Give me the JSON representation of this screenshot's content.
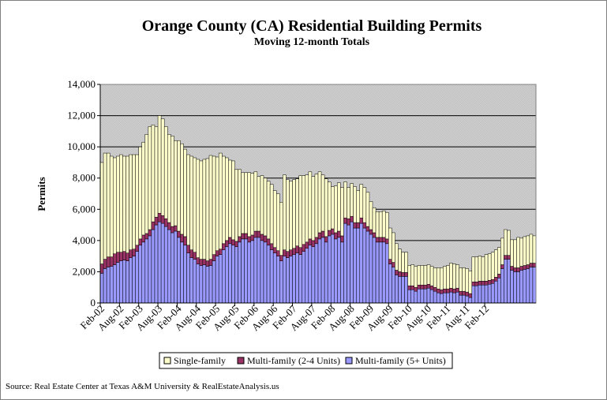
{
  "chart_data": {
    "type": "bar",
    "stacked": true,
    "title": "Orange County (CA) Residential Building Permits",
    "subtitle": "Moving 12-month Totals",
    "ylabel": "Permits",
    "ylim": [
      0,
      14000
    ],
    "yticks": [
      "0",
      "2,000",
      "4,000",
      "6,000",
      "8,000",
      "10,000",
      "12,000",
      "14,000"
    ],
    "xticks": [
      "Feb-02",
      "Aug-02",
      "Feb-03",
      "Aug-03",
      "Feb-04",
      "Aug-04",
      "Feb-05",
      "Aug-05",
      "Feb-06",
      "Aug-06",
      "Feb-07",
      "Aug-07",
      "Feb-08",
      "Aug-08",
      "Feb-09",
      "Aug-09",
      "Feb-10",
      "Aug-10",
      "Feb-11",
      "Aug-11",
      "Feb-12"
    ],
    "grid": true,
    "legend_position": "bottom",
    "source": "Source: Real Estate Center at Texas A&M University & RealEstateAnalysis.us",
    "colors": {
      "plot_background": "#c0c0c0",
      "single_family": "#ffffcc",
      "multi_2_4": "#993366",
      "multi_5_plus": "#9999ff"
    },
    "x_start": "Feb-02",
    "x_end": "Mar-12",
    "series": [
      {
        "name": "Multi-family (5+ Units)",
        "values": [
          1900,
          2200,
          2300,
          2350,
          2450,
          2600,
          2700,
          2750,
          2700,
          2900,
          3000,
          3300,
          3700,
          3900,
          4100,
          4300,
          4700,
          5000,
          5200,
          5100,
          4900,
          4700,
          4500,
          4600,
          4200,
          3900,
          3700,
          3200,
          2900,
          2800,
          2500,
          2400,
          2450,
          2350,
          2400,
          2700,
          3000,
          3100,
          3400,
          3600,
          3800,
          3700,
          3600,
          3900,
          4100,
          4100,
          3900,
          4000,
          4200,
          4200,
          4000,
          3900,
          3700,
          3400,
          3200,
          3000,
          2700,
          3000,
          2900,
          3000,
          3100,
          3200,
          3100,
          3300,
          3500,
          3700,
          3600,
          3800,
          4100,
          4200,
          3900,
          4300,
          4400,
          4100,
          4200,
          3900,
          5100,
          5000,
          5200,
          4800,
          4800,
          5100,
          4800,
          4600,
          4400,
          4200,
          3900,
          3900,
          3900,
          3800,
          2500,
          2300,
          1800,
          1700,
          1700,
          1700,
          850,
          850,
          750,
          900,
          900,
          900,
          950,
          850,
          750,
          650,
          600,
          650,
          650,
          700,
          650,
          700,
          500,
          500,
          450,
          350,
          1100,
          1100,
          1150,
          1150,
          1150,
          1200,
          1250,
          1400,
          1600,
          2200,
          2800,
          2800,
          2100,
          2000,
          2000,
          2100,
          2150,
          2200,
          2300,
          2300
        ]
      },
      {
        "name": "Multi-family (2-4 Units)",
        "values": [
          600,
          600,
          650,
          600,
          700,
          650,
          550,
          550,
          500,
          500,
          450,
          400,
          400,
          450,
          350,
          400,
          500,
          500,
          550,
          500,
          500,
          450,
          400,
          350,
          400,
          500,
          550,
          500,
          500,
          450,
          400,
          400,
          350,
          350,
          400,
          400,
          350,
          350,
          400,
          400,
          400,
          350,
          350,
          350,
          350,
          350,
          350,
          350,
          400,
          400,
          400,
          400,
          400,
          400,
          350,
          350,
          350,
          400,
          400,
          400,
          400,
          450,
          450,
          450,
          400,
          400,
          400,
          400,
          400,
          400,
          350,
          350,
          350,
          400,
          400,
          400,
          350,
          400,
          350,
          350,
          350,
          350,
          350,
          300,
          300,
          300,
          300,
          300,
          300,
          300,
          300,
          300,
          300,
          300,
          250,
          250,
          250,
          250,
          250,
          250,
          250,
          250,
          250,
          250,
          250,
          250,
          250,
          250,
          250,
          250,
          250,
          250,
          250,
          250,
          250,
          250,
          250,
          250,
          250,
          250,
          250,
          250,
          250,
          250,
          250,
          250,
          250,
          250,
          250,
          250,
          250,
          250,
          250,
          250,
          250,
          250
        ]
      },
      {
        "name": "Single-family",
        "values": [
          6500,
          6800,
          6650,
          6450,
          6150,
          6150,
          6250,
          6100,
          6200,
          6100,
          6050,
          5800,
          5900,
          5950,
          6350,
          6600,
          6200,
          5800,
          6250,
          6200,
          5900,
          5650,
          5800,
          5450,
          5800,
          5800,
          5600,
          5800,
          6000,
          6050,
          6300,
          6300,
          6400,
          6550,
          6650,
          6300,
          6000,
          6150,
          5600,
          5300,
          4950,
          5050,
          4600,
          4300,
          3900,
          3900,
          4100,
          3950,
          3800,
          3500,
          3750,
          3700,
          3700,
          3800,
          3650,
          3650,
          3400,
          4800,
          4600,
          4400,
          4400,
          4300,
          4600,
          4400,
          4300,
          4300,
          4100,
          4050,
          3900,
          3600,
          3700,
          3100,
          2700,
          3000,
          3100,
          3100,
          2300,
          2000,
          2100,
          2300,
          2050,
          2150,
          2250,
          2200,
          1800,
          1600,
          1650,
          1650,
          1700,
          1700,
          2000,
          1900,
          1700,
          1450,
          1300,
          1300,
          1300,
          1350,
          1350,
          1250,
          1250,
          1250,
          1250,
          1250,
          1250,
          1350,
          1400,
          1450,
          1500,
          1600,
          1600,
          1500,
          1500,
          1500,
          1500,
          1450,
          1600,
          1600,
          1600,
          1550,
          1700,
          1700,
          1750,
          1750,
          1700,
          1700,
          1650,
          1600,
          1700,
          1800,
          1950,
          1800,
          1850,
          1850,
          1850,
          1750
        ]
      }
    ]
  }
}
